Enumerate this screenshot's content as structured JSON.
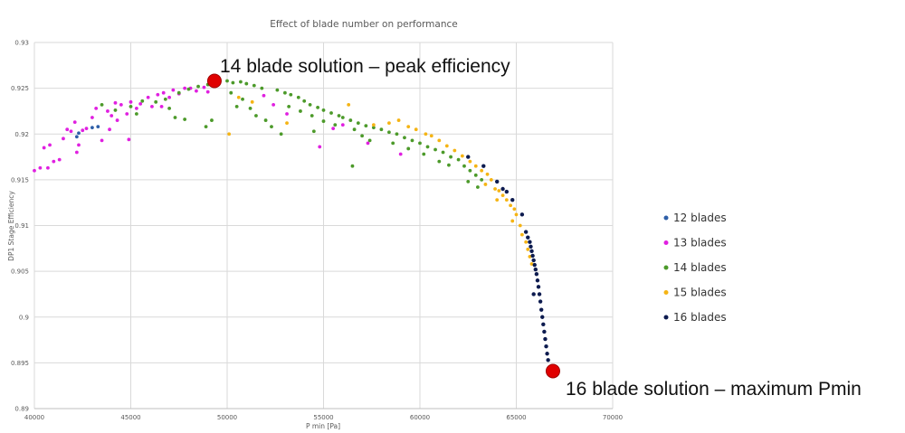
{
  "chart_data": {
    "type": "scatter",
    "title": "Effect of blade number on performance",
    "xlabel": "P min [Pa]",
    "ylabel": "DP1 Stage Efficiency",
    "xlim": [
      40000,
      70000
    ],
    "ylim": [
      0.89,
      0.93
    ],
    "xticks": [
      40000,
      45000,
      50000,
      55000,
      60000,
      65000,
      70000
    ],
    "yticks": [
      0.89,
      0.895,
      0.9,
      0.905,
      0.91,
      0.915,
      0.92,
      0.925,
      0.93
    ],
    "ytick_labels": [
      "0.89",
      "0.895",
      "0.9",
      "0.905",
      "0.91",
      "0.915",
      "0.92",
      "0.925",
      "0.93"
    ],
    "grid": true,
    "legend_position": "right",
    "series": [
      {
        "name": "12 blades",
        "color": "#2e5fa8",
        "points": [
          [
            42200,
            0.9197
          ],
          [
            42300,
            0.9201
          ],
          [
            43000,
            0.9207
          ],
          [
            43300,
            0.9208
          ]
        ]
      },
      {
        "name": "13 blades",
        "color": "#e020e0",
        "points": [
          [
            40000,
            0.916
          ],
          [
            40300,
            0.9163
          ],
          [
            40700,
            0.9163
          ],
          [
            41000,
            0.917
          ],
          [
            41300,
            0.9172
          ],
          [
            40500,
            0.9185
          ],
          [
            40800,
            0.9188
          ],
          [
            41500,
            0.9195
          ],
          [
            41700,
            0.9205
          ],
          [
            41900,
            0.9203
          ],
          [
            42100,
            0.9213
          ],
          [
            42200,
            0.918
          ],
          [
            42300,
            0.9188
          ],
          [
            42500,
            0.9204
          ],
          [
            42700,
            0.9206
          ],
          [
            43000,
            0.9218
          ],
          [
            43200,
            0.9228
          ],
          [
            43500,
            0.9193
          ],
          [
            43800,
            0.9225
          ],
          [
            44000,
            0.922
          ],
          [
            44200,
            0.9234
          ],
          [
            44500,
            0.9232
          ],
          [
            44900,
            0.9194
          ],
          [
            45000,
            0.9235
          ],
          [
            45300,
            0.9228
          ],
          [
            45500,
            0.9233
          ],
          [
            45900,
            0.924
          ],
          [
            46100,
            0.923
          ],
          [
            46400,
            0.9243
          ],
          [
            46700,
            0.9245
          ],
          [
            47000,
            0.924
          ],
          [
            47200,
            0.9248
          ],
          [
            47500,
            0.9244
          ],
          [
            47800,
            0.925
          ],
          [
            48100,
            0.925
          ],
          [
            48400,
            0.9247
          ],
          [
            48800,
            0.9251
          ],
          [
            49000,
            0.9246
          ],
          [
            44800,
            0.9222
          ],
          [
            46600,
            0.923
          ],
          [
            43900,
            0.9205
          ],
          [
            44300,
            0.9215
          ],
          [
            51900,
            0.9242
          ],
          [
            52400,
            0.9232
          ],
          [
            53100,
            0.9222
          ],
          [
            54800,
            0.9186
          ],
          [
            55500,
            0.9206
          ],
          [
            56000,
            0.921
          ],
          [
            57300,
            0.919
          ],
          [
            59000,
            0.9178
          ]
        ]
      },
      {
        "name": "14 blades",
        "color": "#4c9a2a",
        "points": [
          [
            43500,
            0.9232
          ],
          [
            44200,
            0.9226
          ],
          [
            45000,
            0.923
          ],
          [
            45600,
            0.9236
          ],
          [
            46300,
            0.9235
          ],
          [
            47000,
            0.9228
          ],
          [
            47500,
            0.9245
          ],
          [
            48000,
            0.9249
          ],
          [
            48500,
            0.9252
          ],
          [
            49000,
            0.9254
          ],
          [
            47300,
            0.9218
          ],
          [
            47800,
            0.9216
          ],
          [
            48900,
            0.9208
          ],
          [
            49600,
            0.9257
          ],
          [
            50000,
            0.9258
          ],
          [
            50300,
            0.9256
          ],
          [
            50700,
            0.9257
          ],
          [
            51000,
            0.9255
          ],
          [
            51400,
            0.9253
          ],
          [
            51800,
            0.925
          ],
          [
            50200,
            0.9245
          ],
          [
            50800,
            0.9238
          ],
          [
            51200,
            0.9228
          ],
          [
            51500,
            0.922
          ],
          [
            52000,
            0.9215
          ],
          [
            52300,
            0.9208
          ],
          [
            52600,
            0.9248
          ],
          [
            53000,
            0.9245
          ],
          [
            53300,
            0.9243
          ],
          [
            53700,
            0.924
          ],
          [
            54000,
            0.9236
          ],
          [
            54300,
            0.9232
          ],
          [
            54700,
            0.9229
          ],
          [
            55000,
            0.9226
          ],
          [
            55400,
            0.9223
          ],
          [
            55800,
            0.922
          ],
          [
            53200,
            0.923
          ],
          [
            53800,
            0.9225
          ],
          [
            54400,
            0.922
          ],
          [
            55000,
            0.9214
          ],
          [
            55600,
            0.921
          ],
          [
            56000,
            0.9218
          ],
          [
            56400,
            0.9215
          ],
          [
            56800,
            0.9212
          ],
          [
            57200,
            0.9209
          ],
          [
            57600,
            0.9207
          ],
          [
            58000,
            0.9205
          ],
          [
            56600,
            0.9205
          ],
          [
            57000,
            0.9198
          ],
          [
            57400,
            0.9193
          ],
          [
            56500,
            0.9165
          ],
          [
            58400,
            0.9202
          ],
          [
            58800,
            0.92
          ],
          [
            59200,
            0.9196
          ],
          [
            59600,
            0.9193
          ],
          [
            60000,
            0.919
          ],
          [
            60400,
            0.9186
          ],
          [
            58600,
            0.919
          ],
          [
            59400,
            0.9184
          ],
          [
            60200,
            0.9178
          ],
          [
            60800,
            0.9183
          ],
          [
            61200,
            0.918
          ],
          [
            61600,
            0.9175
          ],
          [
            62000,
            0.9172
          ],
          [
            61000,
            0.917
          ],
          [
            61500,
            0.9166
          ],
          [
            62300,
            0.9165
          ],
          [
            62600,
            0.916
          ],
          [
            62900,
            0.9155
          ],
          [
            63200,
            0.915
          ],
          [
            62500,
            0.9148
          ],
          [
            63000,
            0.9142
          ],
          [
            54500,
            0.9203
          ],
          [
            52800,
            0.92
          ],
          [
            50500,
            0.923
          ],
          [
            49200,
            0.9215
          ],
          [
            46800,
            0.9238
          ],
          [
            45300,
            0.9222
          ]
        ]
      },
      {
        "name": "15 blades",
        "color": "#f5b414",
        "points": [
          [
            50100,
            0.92
          ],
          [
            50600,
            0.924
          ],
          [
            51300,
            0.9235
          ],
          [
            53100,
            0.9212
          ],
          [
            56300,
            0.9232
          ],
          [
            57600,
            0.921
          ],
          [
            58400,
            0.9212
          ],
          [
            58900,
            0.9215
          ],
          [
            59400,
            0.9208
          ],
          [
            59800,
            0.9205
          ],
          [
            60300,
            0.92
          ],
          [
            60600,
            0.9198
          ],
          [
            61000,
            0.9193
          ],
          [
            61400,
            0.9187
          ],
          [
            61800,
            0.9182
          ],
          [
            62200,
            0.9176
          ],
          [
            62600,
            0.917
          ],
          [
            62900,
            0.9165
          ],
          [
            63200,
            0.916
          ],
          [
            63500,
            0.9156
          ],
          [
            63700,
            0.915
          ],
          [
            63400,
            0.9145
          ],
          [
            63900,
            0.914
          ],
          [
            64100,
            0.9138
          ],
          [
            64300,
            0.9133
          ],
          [
            64000,
            0.9128
          ],
          [
            64500,
            0.9128
          ],
          [
            64700,
            0.9122
          ],
          [
            64900,
            0.9118
          ],
          [
            65000,
            0.9112
          ],
          [
            64800,
            0.9105
          ],
          [
            65200,
            0.91
          ],
          [
            65300,
            0.909
          ],
          [
            65500,
            0.9082
          ],
          [
            65600,
            0.9074
          ],
          [
            65700,
            0.9066
          ],
          [
            65800,
            0.9058
          ]
        ]
      },
      {
        "name": "16 blades",
        "color": "#0d1b4f",
        "points": [
          [
            62500,
            0.9175
          ],
          [
            63300,
            0.9165
          ],
          [
            64000,
            0.9148
          ],
          [
            64300,
            0.914
          ],
          [
            64500,
            0.9137
          ],
          [
            64800,
            0.9128
          ],
          [
            65300,
            0.9112
          ],
          [
            65500,
            0.9093
          ],
          [
            65600,
            0.9087
          ],
          [
            65700,
            0.9082
          ],
          [
            65750,
            0.9077
          ],
          [
            65800,
            0.9072
          ],
          [
            65850,
            0.9067
          ],
          [
            65900,
            0.9062
          ],
          [
            65950,
            0.9057
          ],
          [
            66000,
            0.9052
          ],
          [
            66050,
            0.9047
          ],
          [
            66100,
            0.904
          ],
          [
            66150,
            0.9033
          ],
          [
            65900,
            0.9025
          ],
          [
            66200,
            0.9025
          ],
          [
            66250,
            0.9017
          ],
          [
            66300,
            0.9008
          ],
          [
            66350,
            0.9
          ],
          [
            66400,
            0.8992
          ],
          [
            66450,
            0.8984
          ],
          [
            66500,
            0.8976
          ],
          [
            66550,
            0.8968
          ],
          [
            66600,
            0.896
          ],
          [
            66650,
            0.8953
          ]
        ]
      }
    ],
    "highlights": [
      {
        "label": "14 blade solution – peak efficiency",
        "x": 49340,
        "y": 0.9258,
        "color": "#e00000"
      },
      {
        "label": "16 blade solution – maximum Pmin",
        "x": 66900,
        "y": 0.8941,
        "color": "#e00000"
      }
    ]
  }
}
